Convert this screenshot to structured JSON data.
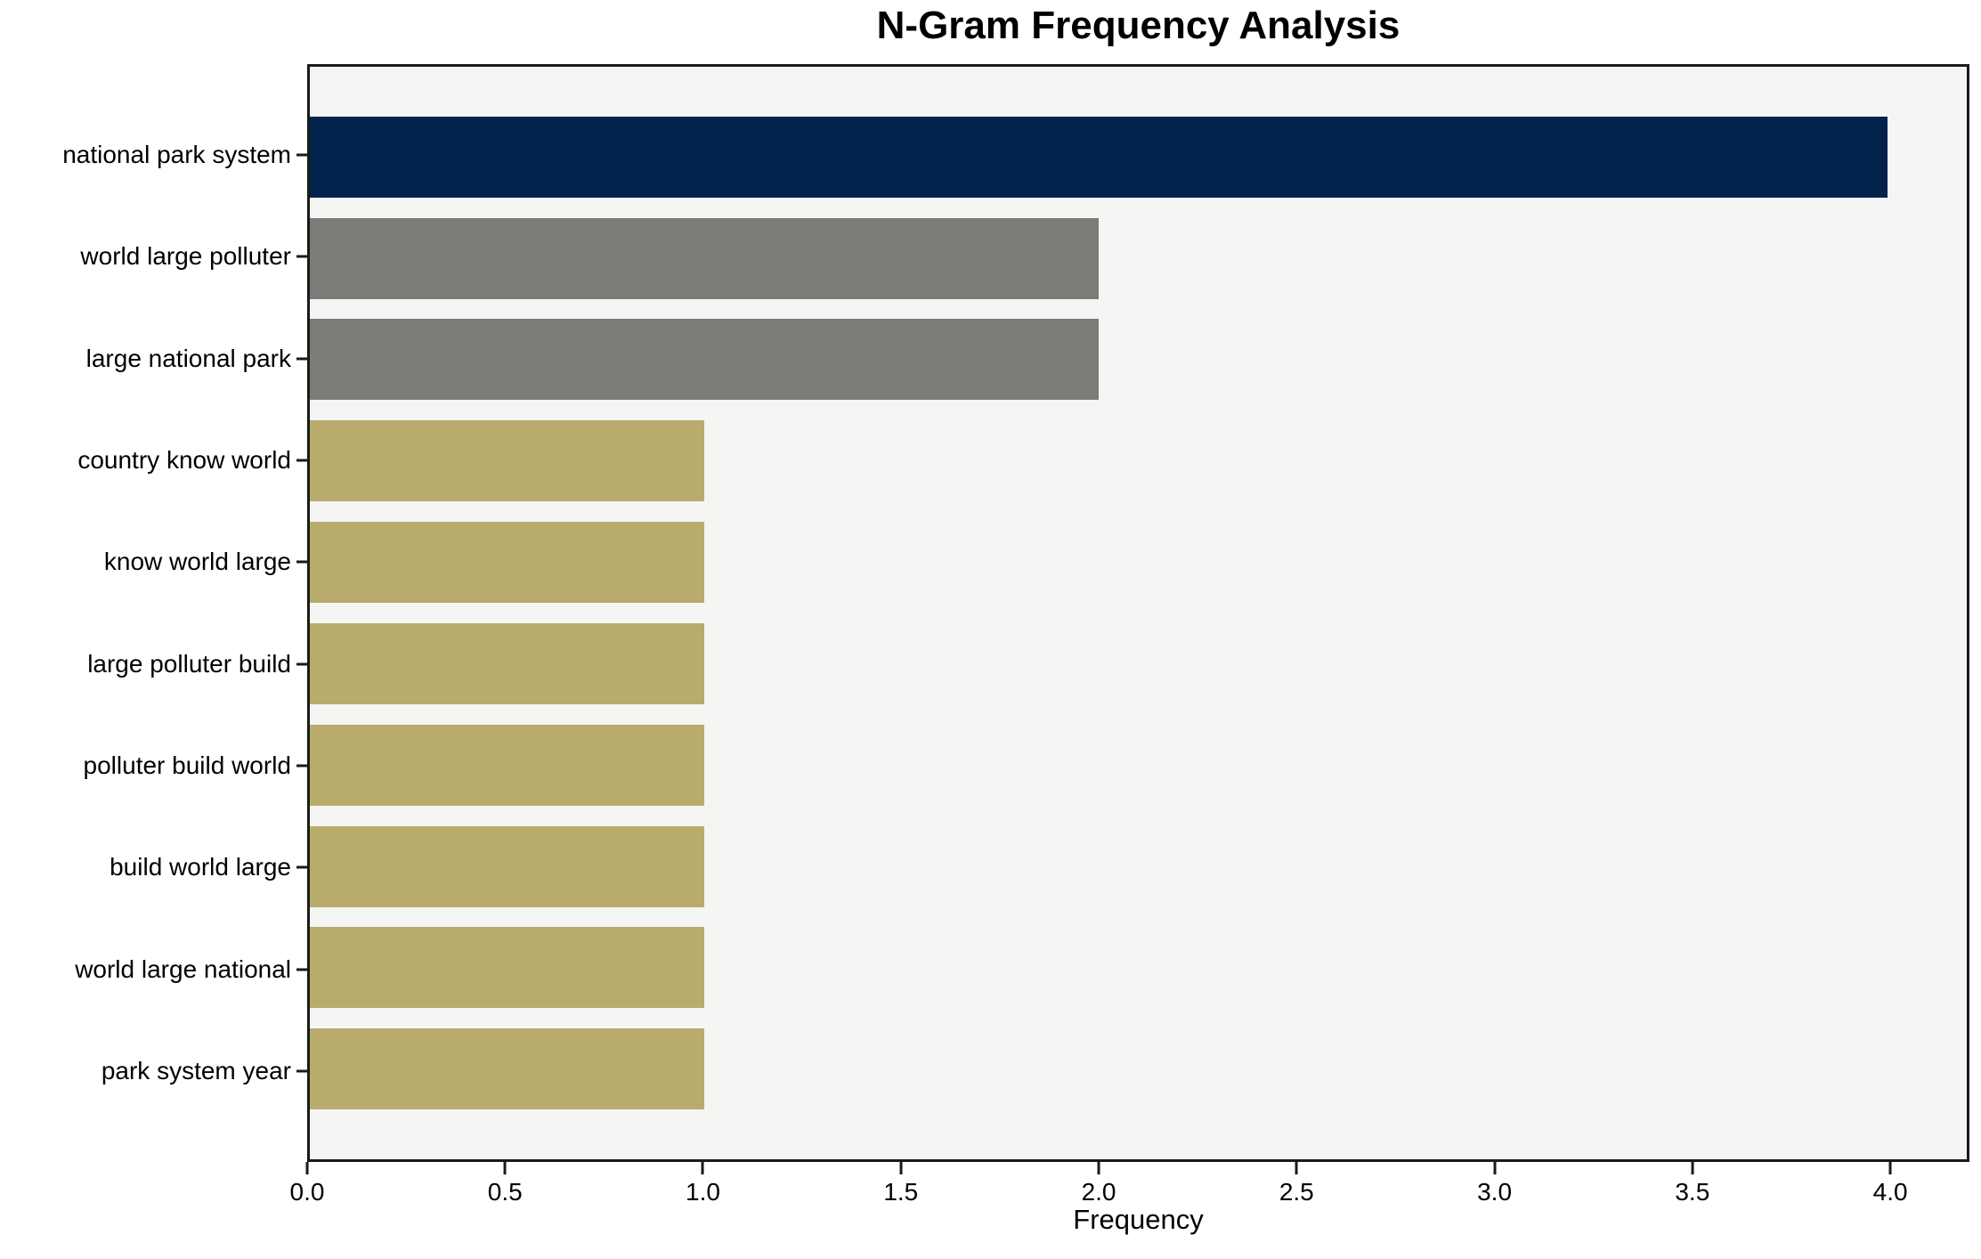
{
  "chart_data": {
    "type": "bar",
    "orientation": "horizontal",
    "title": "N-Gram Frequency Analysis",
    "xlabel": "Frequency",
    "ylabel": "",
    "categories": [
      "national park system",
      "world large polluter",
      "large national park",
      "country know world",
      "know world large",
      "large polluter build",
      "polluter build world",
      "build world large",
      "world large national",
      "park system year"
    ],
    "values": [
      4,
      2,
      2,
      1,
      1,
      1,
      1,
      1,
      1,
      1
    ],
    "bar_colors": [
      "#02234c",
      "#7c7b77",
      "#7c7b77",
      "#b9ab6c",
      "#b9ab6c",
      "#b9ab6c",
      "#b9ab6c",
      "#b9ab6c",
      "#b9ab6c",
      "#b9ab6c"
    ],
    "xtick_labels": [
      "0.0",
      "0.5",
      "1.0",
      "1.5",
      "2.0",
      "2.5",
      "3.0",
      "3.5",
      "4.0"
    ],
    "xtick_values": [
      0,
      0.5,
      1,
      1.5,
      2,
      2.5,
      3,
      3.5,
      4
    ],
    "xlim": [
      0,
      4.2
    ],
    "grid": false,
    "legend": null,
    "colors": {
      "navy": "#02234c",
      "gray": "#7c7b77",
      "khaki": "#b9ab6c",
      "plot_background": "#f5f5f4",
      "figure_background": "#ffffff",
      "axis": "#1a1a1a"
    }
  }
}
